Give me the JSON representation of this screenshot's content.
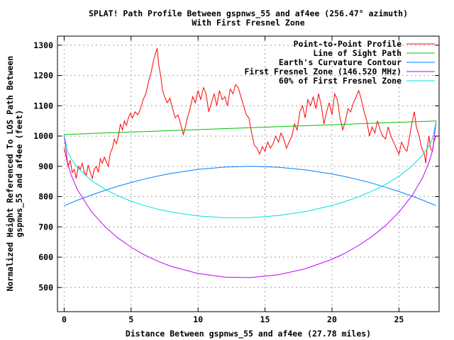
{
  "chart_data": {
    "type": "line",
    "title": [
      "SPLAT! Path Profile Between gspnws_55 and af4ee (256.47° azimuth)",
      "With First Fresnel Zone"
    ],
    "xlabel": "Distance Between gspnws_55 and af4ee (27.78 miles)",
    "ylabel": [
      "Normalized Height Referenced To LOS Path Between",
      "gspnws_55 and af4ee (feet)"
    ],
    "xlim": [
      -0.5,
      28
    ],
    "ylim": [
      420,
      1330
    ],
    "xticks": [
      0,
      5,
      10,
      15,
      20,
      25
    ],
    "yticks": [
      500,
      600,
      700,
      800,
      900,
      1000,
      1100,
      1200,
      1300
    ],
    "grid": true,
    "legend_position": "top-right",
    "series": [
      {
        "name": "Point-to-Point Profile",
        "color": "#ff0000",
        "points": [
          [
            0,
            960
          ],
          [
            0.15,
            930
          ],
          [
            0.3,
            900
          ],
          [
            0.45,
            920
          ],
          [
            0.6,
            880
          ],
          [
            0.75,
            890
          ],
          [
            0.9,
            860
          ],
          [
            1.05,
            900
          ],
          [
            1.2,
            890
          ],
          [
            1.35,
            910
          ],
          [
            1.5,
            880
          ],
          [
            1.65,
            870
          ],
          [
            1.8,
            905
          ],
          [
            1.95,
            880
          ],
          [
            2.1,
            860
          ],
          [
            2.25,
            890
          ],
          [
            2.4,
            900
          ],
          [
            2.55,
            880
          ],
          [
            2.7,
            925
          ],
          [
            2.85,
            910
          ],
          [
            3.0,
            930
          ],
          [
            3.15,
            915
          ],
          [
            3.3,
            900
          ],
          [
            3.45,
            945
          ],
          [
            3.6,
            960
          ],
          [
            3.75,
            990
          ],
          [
            3.9,
            975
          ],
          [
            4.05,
            1000
          ],
          [
            4.2,
            1040
          ],
          [
            4.35,
            1020
          ],
          [
            4.5,
            1050
          ],
          [
            4.65,
            1035
          ],
          [
            4.8,
            1060
          ],
          [
            4.95,
            1075
          ],
          [
            5.1,
            1060
          ],
          [
            5.3,
            1080
          ],
          [
            5.5,
            1070
          ],
          [
            5.7,
            1090
          ],
          [
            5.9,
            1120
          ],
          [
            6.1,
            1140
          ],
          [
            6.3,
            1180
          ],
          [
            6.5,
            1210
          ],
          [
            6.65,
            1245
          ],
          [
            6.8,
            1270
          ],
          [
            6.95,
            1290
          ],
          [
            7.05,
            1240
          ],
          [
            7.2,
            1200
          ],
          [
            7.35,
            1150
          ],
          [
            7.5,
            1130
          ],
          [
            7.7,
            1110
          ],
          [
            7.9,
            1125
          ],
          [
            8.1,
            1090
          ],
          [
            8.3,
            1060
          ],
          [
            8.5,
            1070
          ],
          [
            8.7,
            1040
          ],
          [
            8.9,
            1005
          ],
          [
            9.05,
            1030
          ],
          [
            9.2,
            1060
          ],
          [
            9.4,
            1090
          ],
          [
            9.6,
            1130
          ],
          [
            9.8,
            1110
          ],
          [
            10.0,
            1150
          ],
          [
            10.2,
            1120
          ],
          [
            10.4,
            1160
          ],
          [
            10.6,
            1140
          ],
          [
            10.8,
            1080
          ],
          [
            11.0,
            1110
          ],
          [
            11.2,
            1140
          ],
          [
            11.4,
            1100
          ],
          [
            11.6,
            1150
          ],
          [
            11.8,
            1120
          ],
          [
            12.0,
            1130
          ],
          [
            12.2,
            1100
          ],
          [
            12.4,
            1155
          ],
          [
            12.6,
            1140
          ],
          [
            12.8,
            1170
          ],
          [
            13.0,
            1160
          ],
          [
            13.2,
            1130
          ],
          [
            13.4,
            1100
          ],
          [
            13.6,
            1070
          ],
          [
            13.8,
            1060
          ],
          [
            14.0,
            1010
          ],
          [
            14.2,
            970
          ],
          [
            14.4,
            960
          ],
          [
            14.6,
            940
          ],
          [
            14.8,
            965
          ],
          [
            15.0,
            950
          ],
          [
            15.2,
            980
          ],
          [
            15.4,
            960
          ],
          [
            15.6,
            975
          ],
          [
            15.8,
            1000
          ],
          [
            16.0,
            980
          ],
          [
            16.2,
            1010
          ],
          [
            16.4,
            990
          ],
          [
            16.6,
            960
          ],
          [
            16.8,
            980
          ],
          [
            17.0,
            1000
          ],
          [
            17.2,
            1040
          ],
          [
            17.4,
            1020
          ],
          [
            17.6,
            1080
          ],
          [
            17.8,
            1100
          ],
          [
            18.0,
            1060
          ],
          [
            18.2,
            1120
          ],
          [
            18.4,
            1100
          ],
          [
            18.6,
            1130
          ],
          [
            18.8,
            1090
          ],
          [
            19.0,
            1140
          ],
          [
            19.2,
            1100
          ],
          [
            19.4,
            1040
          ],
          [
            19.6,
            1080
          ],
          [
            19.8,
            1110
          ],
          [
            20.0,
            1070
          ],
          [
            20.2,
            1140
          ],
          [
            20.4,
            1120
          ],
          [
            20.6,
            1060
          ],
          [
            20.8,
            1020
          ],
          [
            21.0,
            1050
          ],
          [
            21.2,
            1090
          ],
          [
            21.4,
            1080
          ],
          [
            21.6,
            1110
          ],
          [
            21.8,
            1130
          ],
          [
            22.0,
            1150
          ],
          [
            22.2,
            1120
          ],
          [
            22.4,
            1080
          ],
          [
            22.6,
            1050
          ],
          [
            22.8,
            1000
          ],
          [
            23.0,
            1030
          ],
          [
            23.2,
            1010
          ],
          [
            23.4,
            1050
          ],
          [
            23.6,
            1020
          ],
          [
            23.8,
            1000
          ],
          [
            24.0,
            990
          ],
          [
            24.2,
            1030
          ],
          [
            24.4,
            1000
          ],
          [
            24.6,
            980
          ],
          [
            24.8,
            960
          ],
          [
            25.0,
            940
          ],
          [
            25.2,
            980
          ],
          [
            25.4,
            960
          ],
          [
            25.6,
            950
          ],
          [
            25.8,
            1000
          ],
          [
            26.0,
            1050
          ],
          [
            26.15,
            1080
          ],
          [
            26.3,
            1030
          ],
          [
            26.5,
            1000
          ],
          [
            26.7,
            960
          ],
          [
            26.9,
            940
          ],
          [
            27.0,
            910
          ],
          [
            27.1,
            960
          ],
          [
            27.25,
            1000
          ],
          [
            27.35,
            960
          ],
          [
            27.5,
            950
          ],
          [
            27.6,
            980
          ],
          [
            27.78,
            1000
          ]
        ]
      },
      {
        "name": "Line of Sight Path",
        "color": "#00c000",
        "points": [
          [
            0,
            1005
          ],
          [
            27.78,
            1050
          ]
        ]
      },
      {
        "name": "Earth's Curvature Contour",
        "color": "#0080ff",
        "points": [
          [
            0,
            770
          ],
          [
            0.25,
            774.6
          ],
          [
            0.5,
            779.2
          ],
          [
            1,
            788.1
          ],
          [
            2,
            804.7
          ],
          [
            3,
            820.1
          ],
          [
            4,
            834.1
          ],
          [
            5,
            846.7
          ],
          [
            6,
            858
          ],
          [
            7,
            868
          ],
          [
            8,
            876.6
          ],
          [
            10,
            889.9
          ],
          [
            12,
            897.5
          ],
          [
            13.89,
            900
          ],
          [
            16,
            897
          ],
          [
            18,
            888.6
          ],
          [
            20,
            874.8
          ],
          [
            21,
            865.9
          ],
          [
            22,
            855.7
          ],
          [
            23,
            844.1
          ],
          [
            24,
            831.1
          ],
          [
            25,
            816.8
          ],
          [
            26,
            801.2
          ],
          [
            26.78,
            788.1
          ],
          [
            27.28,
            779.2
          ],
          [
            27.53,
            774.6
          ],
          [
            27.78,
            770
          ]
        ]
      },
      {
        "name": "First Fresnel Zone (146.520 MHz)",
        "color": "#c000ff",
        "points": [
          [
            0,
            1005
          ],
          [
            0.25,
            911.8
          ],
          [
            0.5,
            874.1
          ],
          [
            1,
            822
          ],
          [
            2,
            752.3
          ],
          [
            3,
            702.5
          ],
          [
            4,
            664
          ],
          [
            5,
            632.9
          ],
          [
            6,
            607.3
          ],
          [
            7,
            586.6
          ],
          [
            8,
            569.5
          ],
          [
            10,
            546
          ],
          [
            12,
            533.9
          ],
          [
            13.89,
            532.5
          ],
          [
            16,
            541.8
          ],
          [
            18,
            561.5
          ],
          [
            20,
            592.9
          ],
          [
            21,
            613.8
          ],
          [
            22,
            638.7
          ],
          [
            23,
            668.6
          ],
          [
            24,
            704.3
          ],
          [
            25,
            748.5
          ],
          [
            26,
            804.5
          ],
          [
            26.78,
            863.8
          ],
          [
            27.28,
            917.5
          ],
          [
            27.53,
            956
          ],
          [
            27.78,
            1050
          ]
        ]
      },
      {
        "name": "60% of First Fresnel Zone",
        "color": "#00e0e0",
        "points": [
          [
            0,
            1005
          ],
          [
            0.25,
            949.3
          ],
          [
            0.5,
            926.8
          ],
          [
            1,
            895.8
          ],
          [
            2,
            854.7
          ],
          [
            3,
            825.5
          ],
          [
            4,
            803
          ],
          [
            5,
            785
          ],
          [
            6,
            770.3
          ],
          [
            7,
            758.5
          ],
          [
            8,
            748.9
          ],
          [
            10,
            736.1
          ],
          [
            12,
            730.1
          ],
          [
            13.89,
            730.5
          ],
          [
            16,
            737.5
          ],
          [
            18,
            750.6
          ],
          [
            20,
            770.7
          ],
          [
            21,
            783.9
          ],
          [
            22,
            799.4
          ],
          [
            23,
            818.1
          ],
          [
            24,
            840.2
          ],
          [
            25,
            867.3
          ],
          [
            26,
            901.6
          ],
          [
            26.78,
            937.6
          ],
          [
            27.28,
            970.2
          ],
          [
            27.53,
            993.5
          ],
          [
            27.78,
            1050
          ]
        ]
      }
    ]
  }
}
